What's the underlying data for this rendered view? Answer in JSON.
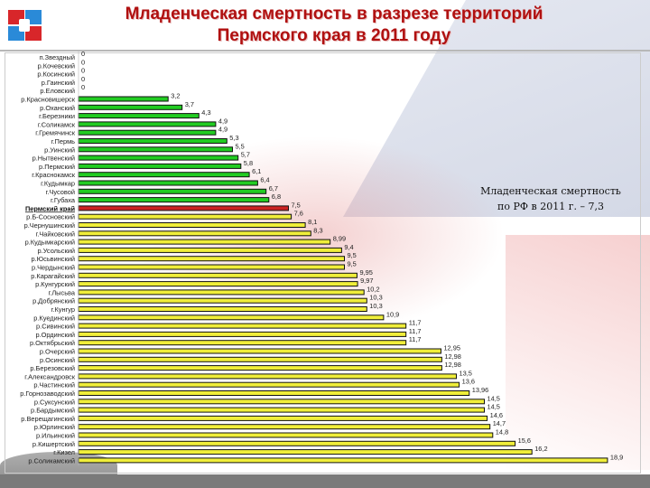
{
  "header": {
    "title_line1": "Младенческая смертность в разрезе территорий",
    "title_line2": "Пермского края в 2011 году"
  },
  "note": {
    "line1": "Младенческая смертность",
    "line2": "по РФ в 2011 г. – 7,3"
  },
  "colors": {
    "green": "#22cc22",
    "red": "#cc2222",
    "yellow": "#f0ee3a",
    "title": "#b01010"
  },
  "chart_data": {
    "type": "bar",
    "orientation": "horizontal",
    "title": "Младенческая смертность в разрезе территорий Пермского края в 2011 году",
    "highlight": "Пермский край",
    "categories": [
      "п.Звездный",
      "р.Кочевский",
      "р.Косинский",
      "р.Гаинский",
      "р.Еловский",
      "р.Красновишерск",
      "р.Оханский",
      "г.Березники",
      "г.Соликамск",
      "г.Гремячинск",
      "г.Пермь",
      "р.Уинский",
      "р.Нытвенский",
      "р.Пермский",
      "г.Краснокамск",
      "г.Кудымкар",
      "г.Чусовой",
      "г.Губаха",
      "Пермский край",
      "р.Б-Сосновский",
      "р.Чернушинский",
      "г.Чайковский",
      "р.Кудымкарский",
      "р.Усольский",
      "р.Юсьвинский",
      "р.Чердынский",
      "р.Карагайский",
      "р.Кунгурский",
      "г.Лысьва",
      "р.Добрянский",
      "г.Кунгур",
      "р.Куединский",
      "р.Сивинский",
      "р.Ординский",
      "р.Октябрьский",
      "р.Очерский",
      "р.Осинский",
      "р.Березовский",
      "г.Александровск",
      "р.Частинский",
      "р.Горнозаводский",
      "р.Суксунский",
      "р.Бардымский",
      "р.Верещагинский",
      "р.Юрлинский",
      "р.Ильинский",
      "р.Кишертский",
      "г.Кизел",
      "р.Соликамский"
    ],
    "values": [
      0,
      0,
      0,
      0,
      0,
      3.2,
      3.7,
      4.3,
      4.9,
      4.9,
      5.3,
      5.5,
      5.7,
      5.8,
      6.1,
      6.4,
      6.7,
      6.8,
      7.5,
      7.6,
      8.1,
      8.3,
      8.99,
      9.4,
      9.5,
      9.5,
      9.95,
      9.97,
      10.2,
      10.3,
      10.3,
      10.9,
      11.7,
      11.7,
      11.7,
      12.95,
      12.98,
      12.98,
      13.5,
      13.6,
      13.96,
      14.5,
      14.5,
      14.6,
      14.7,
      14.8,
      15.6,
      16.2,
      18.9
    ],
    "value_labels": [
      "0",
      "0",
      "0",
      "0",
      "0",
      "3,2",
      "3,7",
      "4,3",
      "4,9",
      "4,9",
      "5,3",
      "5,5",
      "5,7",
      "5,8",
      "6,1",
      "6,4",
      "6,7",
      "6,8",
      "7,5",
      "7,6",
      "8,1",
      "8,3",
      "8,99",
      "9,4",
      "9,5",
      "9,5",
      "9,95",
      "9,97",
      "10,2",
      "10,3",
      "10,3",
      "10,9",
      "11,7",
      "11,7",
      "11,7",
      "12,95",
      "12,98",
      "12,98",
      "13,5",
      "13,6",
      "13,96",
      "14,5",
      "14,5",
      "14,6",
      "14,7",
      "14,8",
      "15,6",
      "16,2",
      "18,9"
    ],
    "xlim": [
      0,
      19
    ],
    "grid": false,
    "legend": "none"
  }
}
